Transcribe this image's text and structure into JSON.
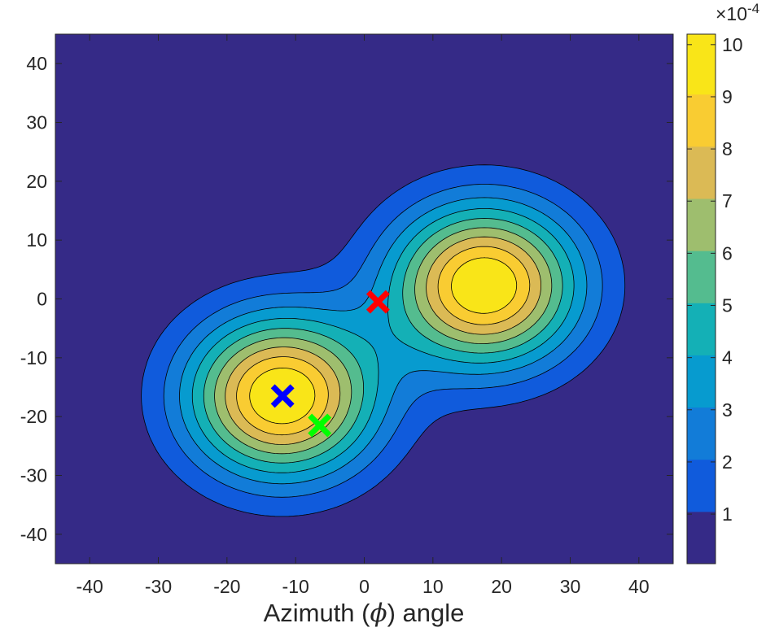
{
  "chart_data": {
    "type": "contour",
    "xlabel": "Azimuth (ϕ) angle",
    "ylabel": "",
    "xlim": [
      -45,
      45
    ],
    "ylim": [
      -45,
      45
    ],
    "x_ticks": [
      -40,
      -30,
      -20,
      -10,
      0,
      10,
      20,
      30,
      40
    ],
    "y_ticks": [
      40,
      30,
      20,
      10,
      0,
      -10,
      -20,
      -30,
      -40
    ],
    "grid": false,
    "colormap": "parula",
    "colorbar": {
      "ticks": [
        1,
        2,
        3,
        4,
        5,
        6,
        7,
        8,
        9,
        10
      ],
      "exponent_base": "×10",
      "exponent_power": "-4",
      "range": [
        0.05,
        10.2
      ]
    },
    "contour_levels": [
      0.05,
      1.05,
      2.05,
      3.05,
      4.05,
      5.05,
      6.05,
      7.05,
      8.05,
      9.05
    ],
    "peaks": [
      {
        "center": [
          -12,
          -16.5
        ],
        "amplitude": 10.2,
        "sigma": 9.6
      },
      {
        "center": [
          17.5,
          2.3
        ],
        "amplitude": 10.2,
        "sigma": 9.6
      }
    ],
    "markers": [
      {
        "x": -11.9,
        "y": -16.5,
        "color": "#0000ff",
        "shape": "x"
      },
      {
        "x": -6.5,
        "y": -21.5,
        "color": "#00ff00",
        "shape": "x"
      },
      {
        "x": 2.0,
        "y": -0.5,
        "color": "#ff0000",
        "shape": "x"
      }
    ]
  }
}
